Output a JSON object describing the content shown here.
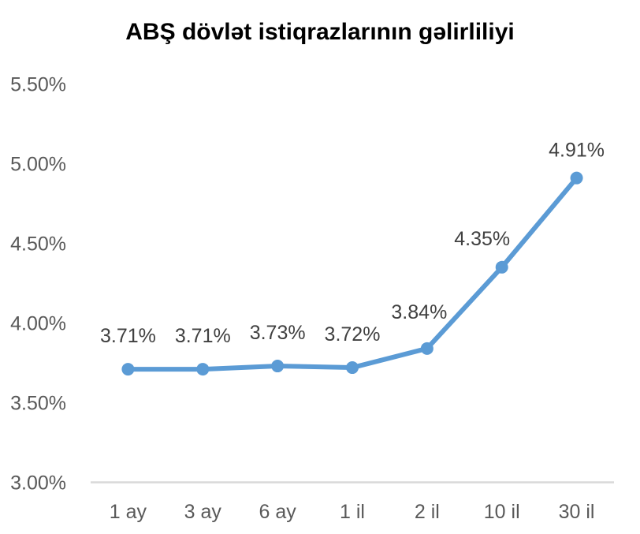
{
  "chart_data": {
    "type": "line",
    "title": "ABŞ dövlət istiqrazlarının gəlirliliyi",
    "categories": [
      "1 ay",
      "3 ay",
      "6 ay",
      "1 il",
      "2 il",
      "10 il",
      "30 il"
    ],
    "values": [
      3.71,
      3.71,
      3.73,
      3.72,
      3.84,
      4.35,
      4.91
    ],
    "data_labels": [
      "3.71%",
      "3.71%",
      "3.73%",
      "3.72%",
      "3.84%",
      "4.35%",
      "4.91%"
    ],
    "y_ticks": [
      "5.50%",
      "5.00%",
      "4.50%",
      "4.00%",
      "3.50%",
      "3.00%"
    ],
    "y_tick_values": [
      5.5,
      5.0,
      4.5,
      4.0,
      3.5,
      3.0
    ],
    "ylim": [
      3.0,
      5.5
    ],
    "xlabel": "",
    "ylabel": "",
    "grid": false,
    "legend": "none",
    "colors": {
      "line": "#5b9bd5",
      "marker": "#5b9bd5",
      "data_label": "#404040",
      "axis_label": "#595959",
      "axis_line": "#d9d9d9",
      "title": "#000000",
      "background": "#ffffff"
    },
    "label_dx": [
      0,
      0,
      0,
      0,
      -10,
      -25,
      0
    ],
    "label_dy": [
      -34,
      -34,
      -34,
      -34,
      -38,
      -28,
      -27
    ]
  }
}
